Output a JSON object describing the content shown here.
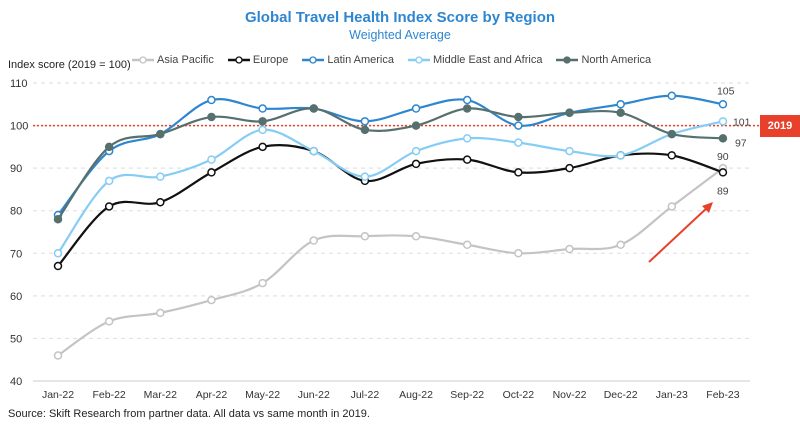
{
  "chart_data": {
    "type": "line",
    "title": "Global Travel Health Index Score by Region",
    "subtitle": "Weighted Average",
    "ylabel": "Index score (2019 = 100)",
    "xlabel": "",
    "ylim": [
      40,
      110
    ],
    "yticks": [
      40,
      50,
      60,
      70,
      80,
      90,
      100,
      110
    ],
    "grid": true,
    "legend": "top",
    "categories": [
      "Jan-22",
      "Feb-22",
      "Mar-22",
      "Apr-22",
      "May-22",
      "Jun-22",
      "Jul-22",
      "Aug-22",
      "Sep-22",
      "Oct-22",
      "Nov-22",
      "Dec-22",
      "Jan-23",
      "Feb-23"
    ],
    "reference_line": {
      "value": 100,
      "label": "2019",
      "color": "#e8402a"
    },
    "series": [
      {
        "name": "Asia Pacific",
        "color": "#c4c4c4",
        "marker": "open",
        "end_label": "90",
        "values": [
          46,
          54,
          56,
          59,
          63,
          73,
          74,
          74,
          72,
          70,
          71,
          72,
          81,
          90
        ]
      },
      {
        "name": "Europe",
        "color": "#111111",
        "marker": "open",
        "end_label": "89",
        "values": [
          67,
          81,
          82,
          89,
          95,
          94,
          87,
          91,
          92,
          89,
          90,
          93,
          93,
          89
        ]
      },
      {
        "name": "Latin America",
        "color": "#2f86d0",
        "marker": "open",
        "end_label": "105",
        "values": [
          79,
          94,
          98,
          106,
          104,
          104,
          101,
          104,
          106,
          100,
          103,
          105,
          107,
          105
        ]
      },
      {
        "name": "Middle East and Africa",
        "color": "#86cdf5",
        "marker": "open",
        "end_label": "101",
        "values": [
          70,
          87,
          88,
          92,
          99,
          94,
          88,
          94,
          97,
          96,
          94,
          93,
          98,
          101
        ]
      },
      {
        "name": "North America",
        "color": "#56706e",
        "marker": "filled",
        "end_label": "97",
        "values": [
          78,
          95,
          98,
          102,
          101,
          104,
          99,
          100,
          104,
          102,
          103,
          103,
          98,
          97
        ]
      }
    ],
    "annotations": [
      "upward red arrow near Asia Pacific Jan-23 to Feb-23"
    ]
  },
  "source": "Source: Skift Research from partner data. All data vs same month in 2019."
}
